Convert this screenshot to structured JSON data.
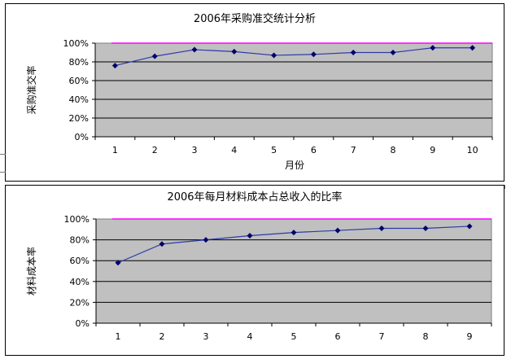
{
  "chart_data": [
    {
      "type": "line",
      "title": "2006年采购准交统计分析",
      "xlabel": "月份",
      "ylabel": "采购准交率",
      "categories": [
        "1",
        "2",
        "3",
        "4",
        "5",
        "6",
        "7",
        "8",
        "9",
        "10"
      ],
      "series": [
        {
          "values": [
            76,
            86,
            93,
            91,
            87,
            88,
            90,
            90,
            95,
            95
          ]
        }
      ],
      "yticks": [
        "0%",
        "20%",
        "40%",
        "60%",
        "80%",
        "100%"
      ],
      "ylim": [
        0,
        100
      ],
      "grid": true,
      "colors": {
        "plot_bg": "#c0c0c0",
        "line": "#2b3aa8",
        "marker": "#00006e",
        "top_line": "#ff00ff"
      }
    },
    {
      "type": "line",
      "title": "2006年每月材料成本占总收入的比率",
      "xlabel": "",
      "ylabel": "材料成本率",
      "categories": [
        "1",
        "2",
        "3",
        "4",
        "5",
        "6",
        "7",
        "8",
        "9"
      ],
      "series": [
        {
          "values": [
            58,
            76,
            80,
            84,
            87,
            89,
            91,
            91,
            93
          ]
        }
      ],
      "yticks": [
        "0%",
        "20%",
        "40%",
        "60%",
        "80%",
        "100%"
      ],
      "ylim": [
        0,
        100
      ],
      "grid": true,
      "colors": {
        "plot_bg": "#c0c0c0",
        "line": "#2b3aa8",
        "marker": "#00006e",
        "top_line": "#ff00ff"
      }
    }
  ]
}
